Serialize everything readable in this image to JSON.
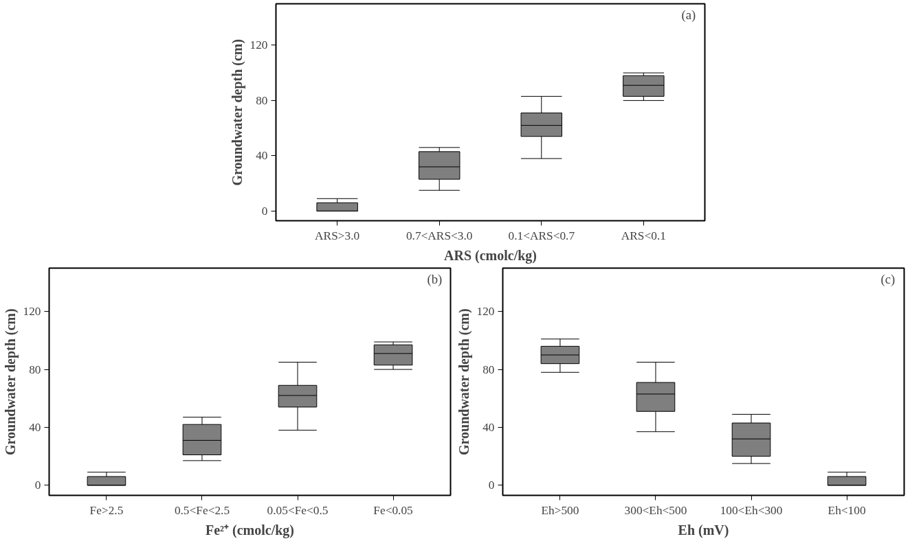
{
  "chart_data": [
    {
      "type": "box",
      "xlabel": "ARS (cmolc/kg)",
      "ylabel": "Groundwater depth (cm)",
      "annotations": [
        "(a)"
      ],
      "categories": [
        "ARS>3.0",
        "0.7<ARS<3.0",
        "0.1<ARS<0.7",
        "ARS<0.1"
      ],
      "color": "#7f7f7f",
      "ylim": [
        -7,
        150
      ],
      "yticks": [
        0,
        40,
        80,
        120
      ],
      "grid": false,
      "boxes": [
        {
          "low": 0,
          "q1": 0,
          "median": 0,
          "q3": 6,
          "high": 9
        },
        {
          "low": 15,
          "q1": 23,
          "median": 32,
          "q3": 43,
          "high": 46
        },
        {
          "low": 38,
          "q1": 54,
          "median": 62,
          "q3": 71,
          "high": 83
        },
        {
          "low": 80,
          "q1": 83,
          "median": 91,
          "q3": 98,
          "high": 100
        }
      ]
    },
    {
      "type": "box",
      "xlabel": "Fe²⁺ (cmolc/kg)",
      "ylabel": "Groundwater depth (cm)",
      "annotations": [
        "(b)"
      ],
      "categories": [
        "Fe>2.5",
        "0.5<Fe<2.5",
        "0.05<Fe<0.5",
        "Fe<0.05"
      ],
      "color": "#7f7f7f",
      "ylim": [
        -7,
        150
      ],
      "yticks": [
        0,
        40,
        80,
        120
      ],
      "grid": false,
      "boxes": [
        {
          "low": 0,
          "q1": 0,
          "median": 0,
          "q3": 6,
          "high": 9
        },
        {
          "low": 17,
          "q1": 21,
          "median": 31,
          "q3": 42,
          "high": 47
        },
        {
          "low": 38,
          "q1": 54,
          "median": 62,
          "q3": 69,
          "high": 85
        },
        {
          "low": 80,
          "q1": 83,
          "median": 91,
          "q3": 97,
          "high": 99
        }
      ]
    },
    {
      "type": "box",
      "xlabel": "Eh (mV)",
      "ylabel": "Groundwater depth (cm)",
      "annotations": [
        "(c)"
      ],
      "categories": [
        "Eh>500",
        "300<Eh<500",
        "100<Eh<300",
        "Eh<100"
      ],
      "color": "#7f7f7f",
      "ylim": [
        -7,
        150
      ],
      "yticks": [
        0,
        40,
        80,
        120
      ],
      "grid": false,
      "boxes": [
        {
          "low": 78,
          "q1": 84,
          "median": 90,
          "q3": 96,
          "high": 101
        },
        {
          "low": 37,
          "q1": 51,
          "median": 63,
          "q3": 71,
          "high": 85
        },
        {
          "low": 15,
          "q1": 20,
          "median": 32,
          "q3": 43,
          "high": 49
        },
        {
          "low": 0,
          "q1": 0,
          "median": 0,
          "q3": 6,
          "high": 9
        }
      ]
    }
  ]
}
